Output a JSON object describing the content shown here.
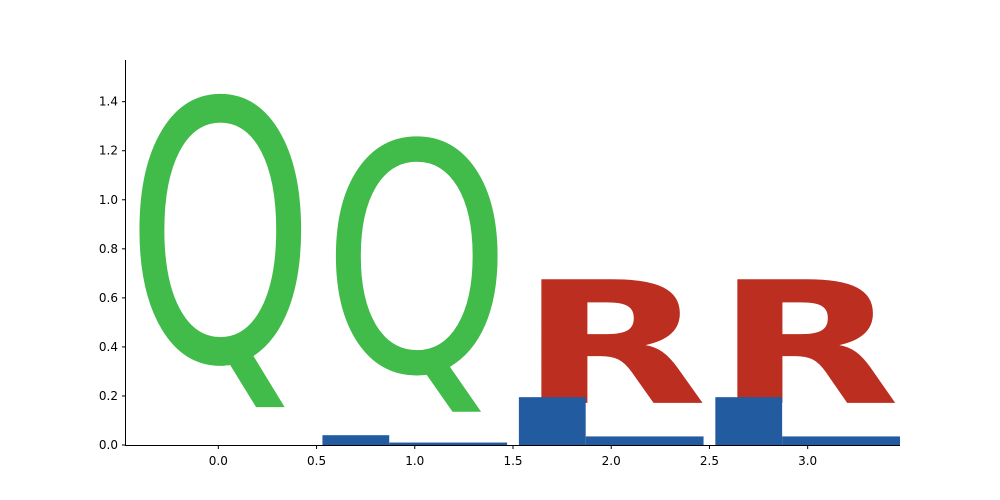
{
  "chart_data": {
    "type": "bar",
    "title": "",
    "xlabel": "",
    "ylabel": "",
    "xlim": [
      -0.47,
      3.47
    ],
    "ylim": [
      0,
      1.57
    ],
    "grid": false,
    "x_ticks": [
      0.0,
      0.5,
      1.0,
      1.5,
      2.0,
      2.5,
      3.0
    ],
    "x_tick_labels": [
      "0.0",
      "0.5",
      "1.0",
      "1.5",
      "2.0",
      "2.5",
      "3.0"
    ],
    "y_ticks": [
      0.0,
      0.2,
      0.4,
      0.6,
      0.8,
      1.0,
      1.2,
      1.4
    ],
    "y_tick_labels": [
      "0.0",
      "0.2",
      "0.4",
      "0.6",
      "0.8",
      "1.0",
      "1.2",
      "1.4"
    ],
    "glyph_columns": [
      {
        "letter": "Q",
        "color": "#41bb49",
        "x_start": -0.47,
        "x_end": 0.49,
        "y_top": 1.57,
        "y_bottom": 0.0
      },
      {
        "letter": "Q",
        "color": "#41bb49",
        "x_start": 0.53,
        "x_end": 1.49,
        "y_top": 1.38,
        "y_bottom": 0.0
      },
      {
        "letter": "R",
        "color": "#bc2e20",
        "x_start": 1.53,
        "x_end": 2.49,
        "y_top": 0.75,
        "y_bottom": 0.2
      },
      {
        "letter": "R",
        "color": "#bc2e20",
        "x_start": 2.53,
        "x_end": 3.47,
        "y_top": 0.75,
        "y_bottom": 0.2
      }
    ],
    "bars": [
      {
        "x_start": 0.53,
        "x_end": 0.87,
        "value": 0.04,
        "color": "#225ba0"
      },
      {
        "x_start": 0.87,
        "x_end": 1.47,
        "value": 0.01,
        "color": "#225ba0"
      },
      {
        "x_start": 1.53,
        "x_end": 1.87,
        "value": 0.195,
        "color": "#225ba0"
      },
      {
        "x_start": 1.87,
        "x_end": 2.47,
        "value": 0.035,
        "color": "#225ba0"
      },
      {
        "x_start": 2.53,
        "x_end": 2.87,
        "value": 0.195,
        "color": "#225ba0"
      },
      {
        "x_start": 2.87,
        "x_end": 3.47,
        "value": 0.035,
        "color": "#225ba0"
      }
    ]
  }
}
